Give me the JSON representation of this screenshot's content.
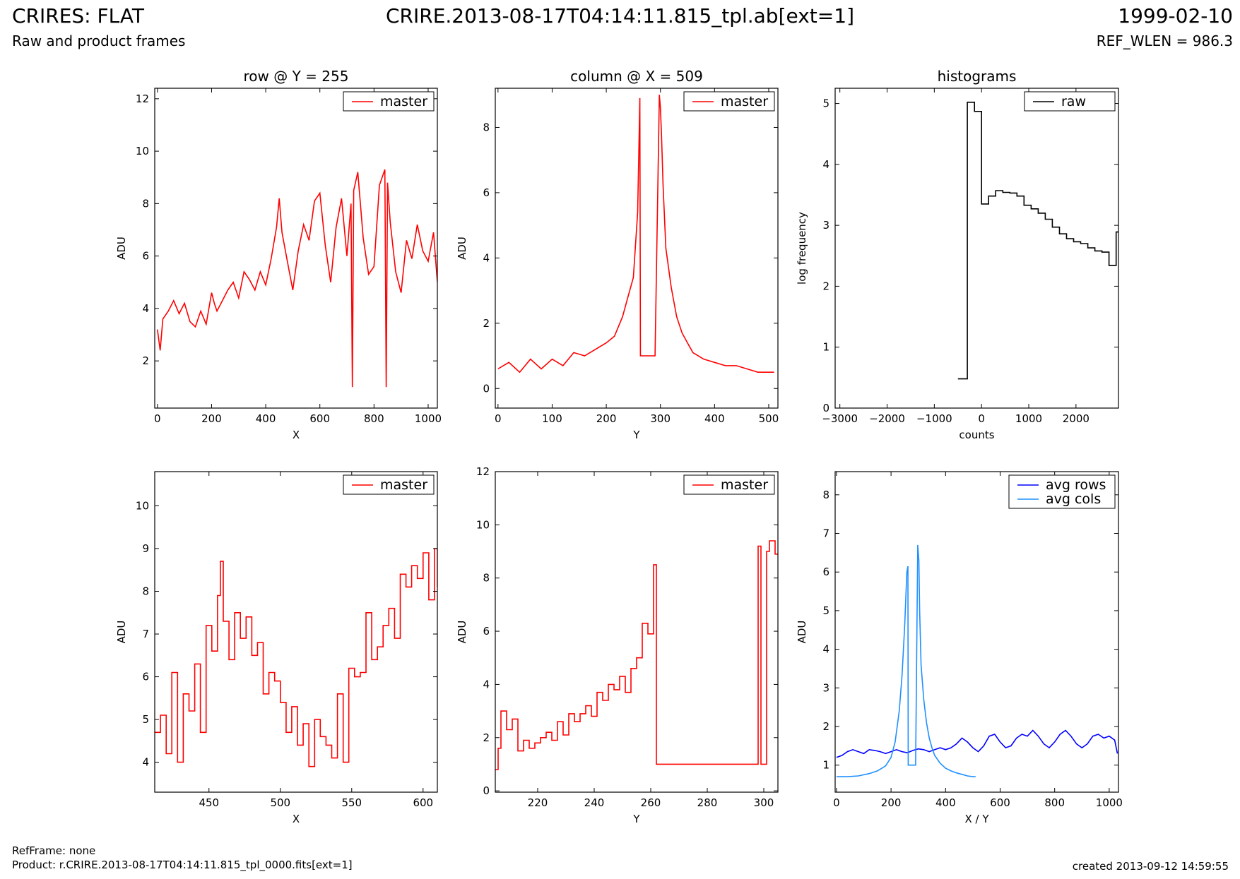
{
  "header": {
    "title_left": "CRIRES: FLAT",
    "subtitle_left": "Raw and product frames",
    "title_center": "CRIRE.2013-08-17T04:14:11.815_tpl.ab[ext=1]",
    "title_right": "1999-02-10",
    "subtitle_right": "REF_WLEN = 986.3"
  },
  "footer": {
    "refframe": "RefFrame: none",
    "product": "Product: r.CRIRE.2013-08-17T04:14:11.815_tpl_0000.fits[ext=1]",
    "created": "created 2013-09-12 14:59:55"
  },
  "chart_data": [
    {
      "type": "line",
      "title": "row @ Y = 255",
      "xlabel": "X",
      "ylabel": "ADU",
      "xlim": [
        -10,
        1034
      ],
      "ylim": [
        0.2,
        12.4
      ],
      "xticks": [
        0,
        200,
        400,
        600,
        800,
        1000
      ],
      "yticks": [
        2,
        4,
        6,
        8,
        10,
        12
      ],
      "legend": "top-right",
      "series": [
        {
          "name": "master",
          "color": "#ff0000",
          "step": false,
          "x": [
            0,
            10,
            20,
            40,
            60,
            80,
            100,
            120,
            140,
            160,
            180,
            200,
            210,
            220,
            240,
            260,
            280,
            300,
            320,
            340,
            360,
            380,
            400,
            420,
            440,
            450,
            460,
            480,
            500,
            520,
            540,
            560,
            580,
            600,
            620,
            640,
            660,
            680,
            700,
            715,
            720,
            725,
            740,
            760,
            780,
            800,
            820,
            840,
            845,
            850,
            860,
            880,
            900,
            920,
            940,
            960,
            980,
            1000,
            1020,
            1034
          ],
          "y": [
            3.2,
            2.4,
            3.6,
            3.9,
            4.3,
            3.8,
            4.2,
            3.5,
            3.3,
            3.9,
            3.4,
            4.6,
            4.2,
            3.9,
            4.3,
            4.7,
            5.0,
            4.4,
            5.4,
            5.1,
            4.7,
            5.4,
            4.9,
            5.9,
            7.1,
            8.2,
            6.9,
            5.8,
            4.7,
            6.2,
            7.2,
            6.6,
            8.1,
            8.4,
            6.4,
            5.0,
            7.1,
            8.2,
            6.0,
            8.0,
            1.0,
            8.5,
            9.2,
            6.7,
            5.3,
            5.6,
            8.7,
            9.3,
            1.0,
            8.8,
            7.3,
            5.4,
            4.6,
            6.6,
            5.9,
            7.2,
            6.2,
            5.8,
            6.9,
            5.0
          ]
        }
      ]
    },
    {
      "type": "line",
      "title": "column @ X = 509",
      "xlabel": "Y",
      "ylabel": "ADU",
      "xlim": [
        -5,
        517
      ],
      "ylim": [
        -0.6,
        9.2
      ],
      "xticks": [
        0,
        100,
        200,
        300,
        400,
        500
      ],
      "yticks": [
        0,
        2,
        4,
        6,
        8
      ],
      "legend": "top-right",
      "series": [
        {
          "name": "master",
          "color": "#ff0000",
          "step": false,
          "x": [
            0,
            20,
            40,
            60,
            80,
            100,
            120,
            140,
            160,
            180,
            200,
            215,
            230,
            240,
            250,
            258,
            262,
            263,
            290,
            298,
            300,
            302,
            305,
            310,
            320,
            330,
            340,
            350,
            360,
            380,
            400,
            420,
            440,
            460,
            480,
            500,
            510
          ],
          "y": [
            0.6,
            0.8,
            0.5,
            0.9,
            0.6,
            0.9,
            0.7,
            1.1,
            1.0,
            1.2,
            1.4,
            1.6,
            2.2,
            2.8,
            3.4,
            5.4,
            8.9,
            1.0,
            1.0,
            9.0,
            8.6,
            7.8,
            6.2,
            4.3,
            3.1,
            2.2,
            1.7,
            1.4,
            1.1,
            0.9,
            0.8,
            0.7,
            0.7,
            0.6,
            0.5,
            0.5,
            0.5
          ]
        }
      ]
    },
    {
      "type": "line",
      "title": "histograms",
      "xlabel": "counts",
      "ylabel": "log frequency",
      "xlim": [
        -3100,
        2900
      ],
      "ylim": [
        0,
        5.25
      ],
      "xticks": [
        -3000,
        -2000,
        -1000,
        0,
        1000,
        2000
      ],
      "yticks": [
        0,
        1,
        2,
        3,
        4,
        5
      ],
      "legend": "top-right",
      "series": [
        {
          "name": "raw",
          "color": "#000000",
          "step": true,
          "x": [
            -500,
            -300,
            -150,
            0,
            150,
            300,
            450,
            600,
            750,
            900,
            1050,
            1200,
            1350,
            1500,
            1650,
            1800,
            1950,
            2100,
            2250,
            2400,
            2550,
            2700,
            2850,
            2900
          ],
          "y": [
            0.48,
            5.02,
            4.87,
            3.35,
            3.48,
            3.57,
            3.54,
            3.53,
            3.48,
            3.33,
            3.27,
            3.2,
            3.1,
            2.97,
            2.86,
            2.78,
            2.73,
            2.7,
            2.63,
            2.58,
            2.56,
            2.34,
            2.89,
            2.89
          ]
        }
      ]
    },
    {
      "type": "line",
      "title": "",
      "xlabel": "X",
      "ylabel": "ADU",
      "xlim": [
        412,
        610
      ],
      "ylim": [
        3.3,
        10.8
      ],
      "xticks": [
        450,
        500,
        550,
        600
      ],
      "yticks": [
        4,
        5,
        6,
        7,
        8,
        9,
        10
      ],
      "legend": "top-right",
      "series": [
        {
          "name": "master",
          "color": "#ff0000",
          "step": true,
          "x": [
            412,
            416,
            420,
            424,
            428,
            432,
            436,
            440,
            444,
            448,
            452,
            456,
            458,
            460,
            464,
            468,
            472,
            476,
            480,
            484,
            488,
            492,
            496,
            500,
            504,
            508,
            512,
            516,
            520,
            524,
            528,
            532,
            536,
            540,
            544,
            548,
            552,
            556,
            560,
            564,
            568,
            572,
            576,
            580,
            584,
            588,
            592,
            596,
            600,
            604,
            608,
            610
          ],
          "y": [
            4.7,
            5.1,
            4.2,
            6.1,
            4.0,
            5.6,
            5.2,
            6.3,
            4.7,
            7.2,
            6.6,
            7.9,
            8.7,
            7.3,
            6.4,
            7.5,
            6.9,
            7.4,
            6.5,
            6.8,
            5.6,
            6.1,
            5.9,
            5.4,
            4.7,
            5.3,
            4.4,
            4.9,
            3.9,
            5.0,
            4.6,
            4.4,
            4.1,
            5.6,
            4.0,
            6.2,
            6.0,
            6.1,
            7.5,
            6.4,
            6.7,
            7.2,
            7.6,
            6.9,
            8.4,
            8.1,
            8.6,
            8.3,
            8.9,
            7.8,
            9.0,
            8.1
          ]
        }
      ]
    },
    {
      "type": "line",
      "title": "",
      "xlabel": "Y",
      "ylabel": "ADU",
      "xlim": [
        205,
        305
      ],
      "ylim": [
        -0.05,
        12
      ],
      "xticks": [
        220,
        240,
        260,
        280,
        300
      ],
      "yticks": [
        0,
        2,
        4,
        6,
        8,
        10,
        12
      ],
      "legend": "top-right",
      "series": [
        {
          "name": "master",
          "color": "#ff0000",
          "step": true,
          "x": [
            205,
            206,
            207,
            209,
            211,
            213,
            215,
            217,
            219,
            221,
            223,
            225,
            227,
            229,
            231,
            233,
            235,
            237,
            239,
            241,
            243,
            245,
            247,
            249,
            251,
            253,
            255,
            257,
            259,
            261,
            262,
            298,
            299,
            301,
            302,
            304,
            305
          ],
          "y": [
            0.8,
            1.6,
            3.0,
            2.3,
            2.7,
            1.5,
            1.9,
            1.6,
            1.8,
            2.0,
            2.2,
            1.9,
            2.6,
            2.1,
            2.9,
            2.6,
            2.9,
            3.2,
            2.8,
            3.7,
            3.4,
            4.0,
            3.8,
            4.3,
            3.7,
            4.6,
            5.0,
            6.3,
            5.9,
            8.5,
            1.0,
            9.2,
            1.0,
            9.0,
            9.4,
            8.9,
            8.9
          ]
        }
      ]
    },
    {
      "type": "line",
      "title": "",
      "xlabel": "X / Y",
      "ylabel": "ADU",
      "xlim": [
        -5,
        1034
      ],
      "ylim": [
        0.3,
        8.6
      ],
      "xticks": [
        0,
        200,
        400,
        600,
        800,
        1000
      ],
      "yticks": [
        1,
        2,
        3,
        4,
        5,
        6,
        7,
        8
      ],
      "legend": "top-right",
      "series": [
        {
          "name": "avg rows",
          "color": "#0000ff",
          "step": false,
          "x": [
            0,
            20,
            40,
            60,
            80,
            100,
            120,
            140,
            160,
            180,
            200,
            220,
            240,
            260,
            280,
            300,
            320,
            340,
            360,
            380,
            400,
            420,
            440,
            460,
            480,
            500,
            520,
            540,
            560,
            580,
            600,
            620,
            640,
            660,
            680,
            700,
            720,
            740,
            760,
            780,
            800,
            820,
            840,
            860,
            880,
            900,
            920,
            940,
            960,
            980,
            1000,
            1020,
            1030
          ],
          "y": [
            1.2,
            1.25,
            1.35,
            1.4,
            1.35,
            1.3,
            1.4,
            1.38,
            1.35,
            1.3,
            1.35,
            1.4,
            1.35,
            1.32,
            1.38,
            1.42,
            1.4,
            1.35,
            1.4,
            1.45,
            1.4,
            1.45,
            1.55,
            1.7,
            1.6,
            1.45,
            1.35,
            1.5,
            1.75,
            1.8,
            1.6,
            1.45,
            1.5,
            1.7,
            1.8,
            1.75,
            1.9,
            1.75,
            1.55,
            1.45,
            1.6,
            1.8,
            1.9,
            1.75,
            1.55,
            1.45,
            1.55,
            1.75,
            1.8,
            1.7,
            1.75,
            1.65,
            1.3
          ]
        },
        {
          "name": "avg cols",
          "color": "#1e90ff",
          "step": false,
          "x": [
            0,
            40,
            80,
            120,
            150,
            180,
            200,
            215,
            230,
            240,
            250,
            258,
            262,
            263,
            290,
            298,
            302,
            305,
            310,
            320,
            330,
            340,
            350,
            360,
            380,
            400,
            420,
            440,
            460,
            480,
            500,
            510
          ],
          "y": [
            0.7,
            0.7,
            0.72,
            0.78,
            0.85,
            0.98,
            1.2,
            1.6,
            2.4,
            3.3,
            4.6,
            6.0,
            6.15,
            1.0,
            1.0,
            6.7,
            6.3,
            5.0,
            3.6,
            2.7,
            2.1,
            1.7,
            1.45,
            1.25,
            1.05,
            0.92,
            0.85,
            0.8,
            0.76,
            0.72,
            0.7,
            0.7
          ]
        }
      ]
    }
  ]
}
